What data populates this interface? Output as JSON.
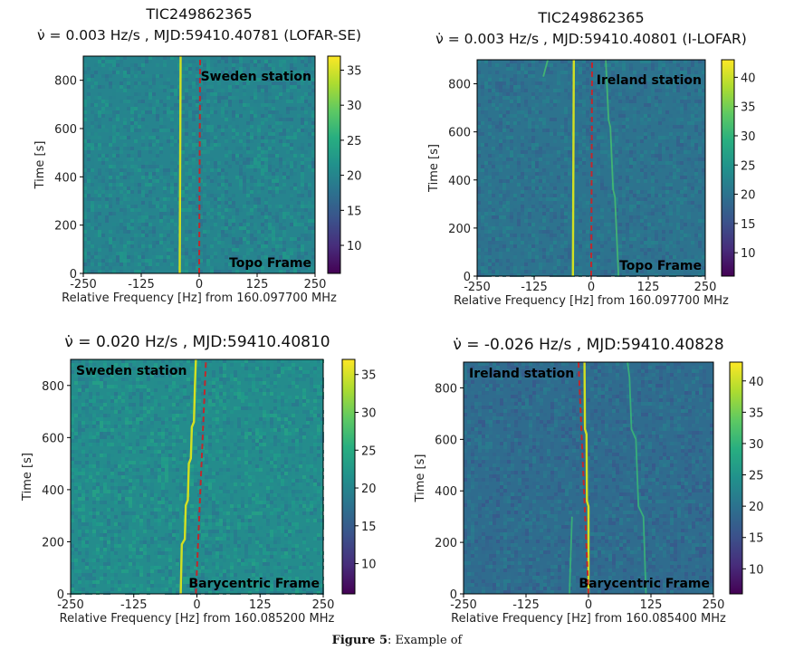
{
  "chart_data": [
    {
      "type": "heatmap",
      "title": "TIC249862365",
      "subtitle": "ν̇ = 0.003 Hz/s , MJD:59410.40781 (LOFAR-SE)",
      "xlabel": "Relative Frequency [Hz] from 160.097700 MHz",
      "ylabel": "Time [s]",
      "xlim": [
        -250,
        250
      ],
      "ylim": [
        0,
        900
      ],
      "xticks": [
        -250,
        -125,
        0,
        125,
        250
      ],
      "yticks": [
        0,
        200,
        400,
        600,
        800
      ],
      "colorbar": {
        "min": 6,
        "max": 37,
        "ticks": [
          10,
          15,
          20,
          25,
          30,
          35
        ],
        "colormap": "viridis"
      },
      "background_level": 20,
      "annotations": {
        "station": "Sweden station",
        "frame": "Topo Frame"
      },
      "signal_track": [
        {
          "x": -42,
          "y": 0
        },
        {
          "x": -40,
          "y": 900
        }
      ],
      "faint_tracks": [],
      "reference_line": [
        {
          "x": 0,
          "y": 0
        },
        {
          "x": 2,
          "y": 900
        }
      ],
      "reference_line_color": "#c0282d",
      "signal_color": "#d2e021"
    },
    {
      "type": "heatmap",
      "title": "TIC249862365",
      "subtitle": "ν̇ = 0.003 Hz/s , MJD:59410.40801 (I-LOFAR)",
      "xlabel": "Relative Frequency [Hz] from 160.097700 MHz",
      "ylabel": "Time [s]",
      "xlim": [
        -250,
        250
      ],
      "ylim": [
        0,
        900
      ],
      "xticks": [
        -250,
        -125,
        0,
        125,
        250
      ],
      "yticks": [
        0,
        200,
        400,
        600,
        800
      ],
      "colorbar": {
        "min": 6,
        "max": 43,
        "ticks": [
          10,
          15,
          20,
          25,
          30,
          35,
          40
        ],
        "colormap": "viridis"
      },
      "background_level": 20,
      "annotations": {
        "station": "Ireland station",
        "frame": "Topo Frame"
      },
      "signal_track": [
        {
          "x": -40,
          "y": 0
        },
        {
          "x": -38,
          "y": 900
        }
      ],
      "faint_tracks": [
        [
          {
            "x": 60,
            "y": 0
          },
          {
            "x": 52,
            "y": 330
          },
          {
            "x": 48,
            "y": 360
          },
          {
            "x": 42,
            "y": 620
          },
          {
            "x": 38,
            "y": 650
          },
          {
            "x": 32,
            "y": 900
          }
        ],
        [
          {
            "x": -105,
            "y": 830
          },
          {
            "x": -95,
            "y": 900
          }
        ]
      ],
      "reference_line": [
        {
          "x": 0,
          "y": 0
        },
        {
          "x": 2,
          "y": 900
        }
      ],
      "reference_line_color": "#c0282d",
      "signal_color": "#d2e021"
    },
    {
      "type": "heatmap",
      "title": "",
      "subtitle": "ν̇ = 0.020 Hz/s , MJD:59410.40810",
      "xlabel": "Relative Frequency [Hz] from 160.085200 MHz",
      "ylabel": "Time [s]",
      "xlim": [
        -250,
        250
      ],
      "ylim": [
        0,
        900
      ],
      "xticks": [
        -250,
        -125,
        0,
        125,
        250
      ],
      "yticks": [
        0,
        200,
        400,
        600,
        800
      ],
      "colorbar": {
        "min": 6,
        "max": 37,
        "ticks": [
          10,
          15,
          20,
          25,
          30,
          35
        ],
        "colormap": "viridis"
      },
      "background_level": 21,
      "annotations": {
        "station": "Sweden station",
        "frame": "Barycentric Frame"
      },
      "signal_track": [
        {
          "x": -32,
          "y": 0
        },
        {
          "x": -30,
          "y": 190
        },
        {
          "x": -24,
          "y": 210
        },
        {
          "x": -22,
          "y": 340
        },
        {
          "x": -18,
          "y": 360
        },
        {
          "x": -16,
          "y": 500
        },
        {
          "x": -12,
          "y": 520
        },
        {
          "x": -10,
          "y": 640
        },
        {
          "x": -6,
          "y": 660
        },
        {
          "x": -4,
          "y": 800
        },
        {
          "x": -2,
          "y": 900
        }
      ],
      "faint_tracks": [],
      "reference_line": [
        {
          "x": -2,
          "y": 0
        },
        {
          "x": 18,
          "y": 900
        }
      ],
      "reference_line_color": "#c0282d",
      "signal_color": "#d2e021"
    },
    {
      "type": "heatmap",
      "title": "",
      "subtitle": "ν̇ = -0.026 Hz/s , MJD:59410.40828",
      "xlabel": "Relative Frequency [Hz] from 160.085400 MHz",
      "ylabel": "Time [s]",
      "xlim": [
        -250,
        250
      ],
      "ylim": [
        0,
        900
      ],
      "xticks": [
        -250,
        -125,
        0,
        125,
        250
      ],
      "yticks": [
        0,
        200,
        400,
        600,
        800
      ],
      "colorbar": {
        "min": 6,
        "max": 43,
        "ticks": [
          10,
          15,
          20,
          25,
          30,
          35,
          40
        ],
        "colormap": "viridis"
      },
      "background_level": 19,
      "annotations": {
        "station": "Ireland station",
        "frame": "Barycentric Frame"
      },
      "signal_track": [
        {
          "x": 0,
          "y": 0
        },
        {
          "x": 0,
          "y": 340
        },
        {
          "x": -3,
          "y": 360
        },
        {
          "x": -4,
          "y": 620
        },
        {
          "x": -7,
          "y": 640
        },
        {
          "x": -8,
          "y": 900
        }
      ],
      "faint_tracks": [
        [
          {
            "x": 115,
            "y": 0
          },
          {
            "x": 110,
            "y": 300
          },
          {
            "x": 100,
            "y": 340
          },
          {
            "x": 95,
            "y": 600
          },
          {
            "x": 86,
            "y": 640
          },
          {
            "x": 82,
            "y": 840
          },
          {
            "x": 78,
            "y": 900
          }
        ],
        [
          {
            "x": -38,
            "y": 0
          },
          {
            "x": -33,
            "y": 300
          }
        ]
      ],
      "reference_line": [
        {
          "x": 0,
          "y": 0
        },
        {
          "x": -20,
          "y": 900
        }
      ],
      "reference_line_color": "#c0282d",
      "signal_color": "#d2e021"
    }
  ],
  "caption": {
    "label": "Figure 5",
    "text": "Example of"
  }
}
